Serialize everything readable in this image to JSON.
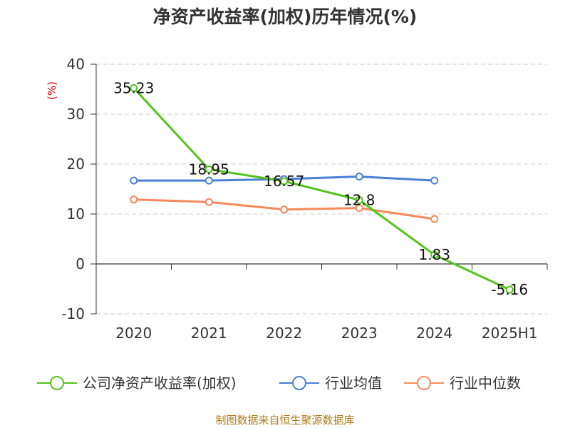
{
  "chart_data": {
    "type": "line",
    "title": "净资产收益率(加权)历年情况(%)",
    "ylabel_unit": "(%)",
    "categories": [
      "2020",
      "2021",
      "2022",
      "2023",
      "2024",
      "2025H1"
    ],
    "ylim": [
      -10,
      40
    ],
    "yticks": [
      40,
      30,
      20,
      10,
      0,
      -10
    ],
    "grid": true,
    "legend_position": "bottom",
    "series": [
      {
        "name": "公司净资产收益率(加权)",
        "color": "#52c41a",
        "values": [
          35.23,
          18.95,
          16.57,
          12.8,
          1.83,
          -5.16
        ],
        "labels": [
          "35.23",
          "18.95",
          "16.57",
          "12.8",
          "1.83",
          "-5.16"
        ]
      },
      {
        "name": "行业均值",
        "color": "#4a7fd6",
        "values": [
          16.7,
          16.7,
          17.0,
          17.5,
          16.7,
          null
        ]
      },
      {
        "name": "行业中位数",
        "color": "#f5895a",
        "values": [
          12.9,
          12.4,
          10.9,
          11.2,
          9.0,
          null
        ]
      }
    ]
  },
  "source": "制图数据来自恒生聚源数据库"
}
